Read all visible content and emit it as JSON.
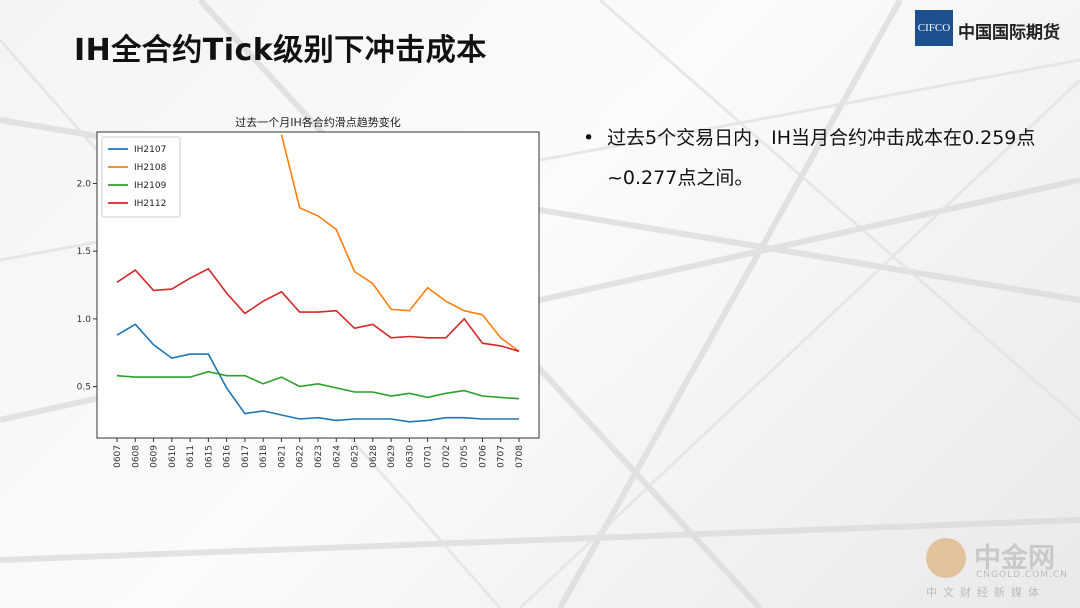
{
  "slide": {
    "title": "IH全合约Tick级别下冲击成本",
    "logo_mark": "CIFCO",
    "logo_text": "中国国际期货",
    "bullet": "过去5个交易日内，IH当月合约冲击成本在0.259点~0.277点之间。"
  },
  "watermark": {
    "name": "中金网",
    "url": "CNGOLD.COM.CN",
    "subtitle": "中文财经新媒体"
  },
  "chart_data": {
    "type": "line",
    "title": "过去一个月IH各合约滑点趋势变化",
    "xlabel": "",
    "ylabel": "",
    "categories": [
      "0607",
      "0608",
      "0609",
      "0610",
      "0611",
      "0615",
      "0616",
      "0617",
      "0618",
      "0621",
      "0622",
      "0623",
      "0624",
      "0625",
      "0628",
      "0629",
      "0630",
      "0701",
      "0702",
      "0705",
      "0706",
      "0707",
      "0708"
    ],
    "yticks": [
      0.5,
      1.0,
      1.5,
      2.0
    ],
    "ylim": [
      0.12,
      2.38
    ],
    "legend_position": "top-left",
    "grid": false,
    "series": [
      {
        "name": "IH2107",
        "color": "#1f77b4",
        "values": [
          0.88,
          0.96,
          0.81,
          0.71,
          0.74,
          0.74,
          0.49,
          0.3,
          0.32,
          0.29,
          0.26,
          0.27,
          0.25,
          0.26,
          0.26,
          0.26,
          0.24,
          0.25,
          0.27,
          0.27,
          0.26,
          0.26,
          0.26
        ]
      },
      {
        "name": "IH2108",
        "color": "#ff7f0e",
        "values": [
          null,
          null,
          null,
          null,
          null,
          null,
          null,
          null,
          null,
          2.36,
          1.82,
          1.76,
          1.66,
          1.35,
          1.26,
          1.07,
          1.06,
          1.23,
          1.13,
          1.06,
          1.03,
          0.86,
          0.76
        ]
      },
      {
        "name": "IH2109",
        "color": "#2ca02c",
        "values": [
          0.58,
          0.57,
          0.57,
          0.57,
          0.57,
          0.61,
          0.58,
          0.58,
          0.52,
          0.57,
          0.5,
          0.52,
          0.49,
          0.46,
          0.46,
          0.43,
          0.45,
          0.42,
          0.45,
          0.47,
          0.43,
          0.42,
          0.41
        ]
      },
      {
        "name": "IH2112",
        "color": "#d62728",
        "values": [
          1.27,
          1.36,
          1.21,
          1.22,
          1.3,
          1.37,
          1.19,
          1.04,
          1.13,
          1.2,
          1.05,
          1.05,
          1.06,
          0.93,
          0.96,
          0.86,
          0.87,
          0.86,
          0.86,
          1.0,
          0.82,
          0.8,
          0.76
        ]
      }
    ]
  }
}
